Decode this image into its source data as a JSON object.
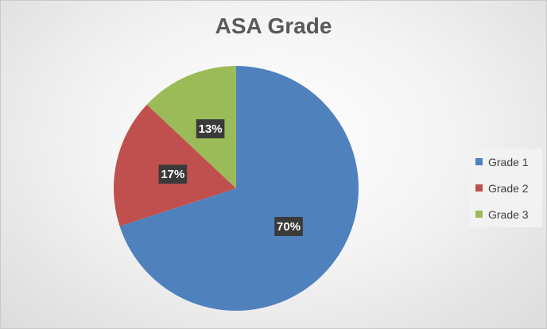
{
  "chart_data": {
    "type": "pie",
    "title": "ASA Grade",
    "categories": [
      "Grade 1",
      "Grade 2",
      "Grade 3"
    ],
    "values": [
      70,
      17,
      13
    ],
    "data_labels": [
      "70%",
      "17%",
      "13%"
    ],
    "colors": [
      "#4f81bd",
      "#c0504d",
      "#9bbb59"
    ],
    "legend_placement": "right",
    "start_angle_deg": 0,
    "direction": "clockwise"
  }
}
